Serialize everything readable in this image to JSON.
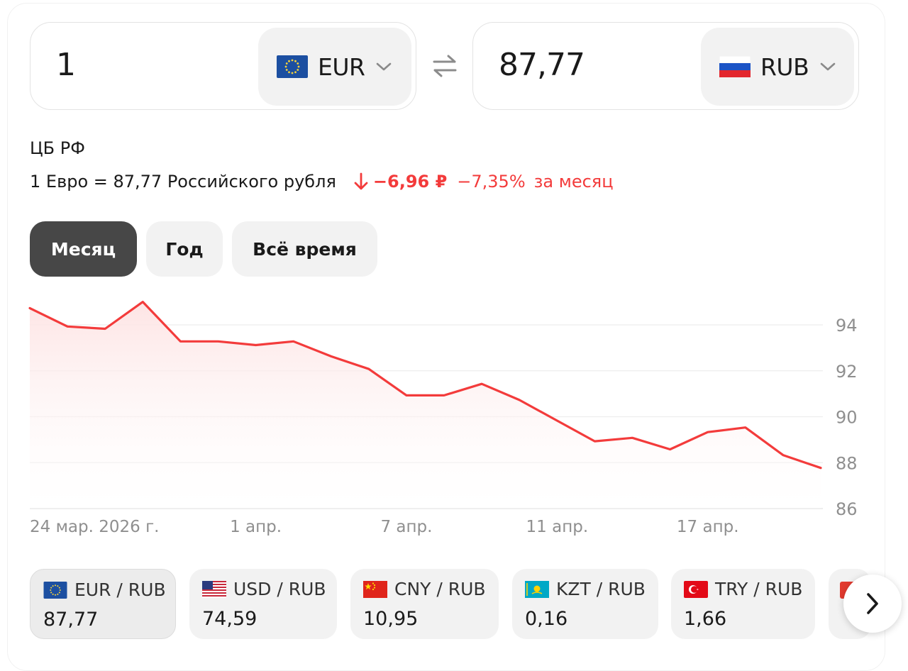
{
  "converter": {
    "from": {
      "amount": "1",
      "code": "EUR",
      "flag": "eu-flag-icon"
    },
    "to": {
      "amount": "87,77",
      "code": "RUB",
      "flag": "ru-flag-icon"
    }
  },
  "source": "ЦБ РФ",
  "rate": {
    "text": "1 Евро = 87,77 Российского рубля",
    "change_abs": "−6,96 ₽",
    "change_pct": "−7,35%",
    "period": "за месяц"
  },
  "tabs": [
    {
      "label": "Месяц",
      "active": true
    },
    {
      "label": "Год",
      "active": false
    },
    {
      "label": "Всё время",
      "active": false
    }
  ],
  "chart_data": {
    "type": "area",
    "title": "",
    "xlabel": "",
    "ylabel": "",
    "ylim": [
      86,
      94
    ],
    "yticks": [
      94,
      92,
      90,
      88,
      86
    ],
    "xtick_labels": [
      "24 мар. 2026 г.",
      "1 апр.",
      "7 апр.",
      "11 апр.",
      "17 апр."
    ],
    "x": [
      "24 мар.",
      "25 мар.",
      "26 мар.",
      "27 мар.",
      "28 мар.",
      "31 мар.",
      "1 апр.",
      "2 апр.",
      "3 апр.",
      "4 апр.",
      "7 апр.",
      "8 апр.",
      "9 апр.",
      "10 апр.",
      "11 апр.",
      "14 апр.",
      "15 апр.",
      "16 апр.",
      "17 апр.",
      "18 апр.",
      "21 апр.",
      "22 апр."
    ],
    "series": [
      {
        "values": [
          94.73,
          93.93,
          93.83,
          95.0,
          93.28,
          93.28,
          93.12,
          93.28,
          92.63,
          92.08,
          90.93,
          90.93,
          91.43,
          90.73,
          89.83,
          88.93,
          89.08,
          88.58,
          89.33,
          89.53,
          88.33,
          87.77
        ]
      }
    ],
    "colors": {
      "line": "#f33b3b",
      "fill": "#fde8e8"
    },
    "grid": true
  },
  "pairs": [
    {
      "name": "EUR / RUB",
      "value": "87,77",
      "flag": "eu-flag-icon",
      "active": true
    },
    {
      "name": "USD / RUB",
      "value": "74,59",
      "flag": "us-flag-icon",
      "active": false
    },
    {
      "name": "CNY / RUB",
      "value": "10,95",
      "flag": "cn-flag-icon",
      "active": false
    },
    {
      "name": "KZT / RUB",
      "value": "0,16",
      "flag": "kz-flag-icon",
      "active": false
    },
    {
      "name": "TRY / RUB",
      "value": "1,66",
      "flag": "tr-flag-icon",
      "active": false
    }
  ],
  "colors": {
    "accent": "#f33b3b",
    "tab_active": "#474747",
    "chip": "#f2f2f2"
  }
}
